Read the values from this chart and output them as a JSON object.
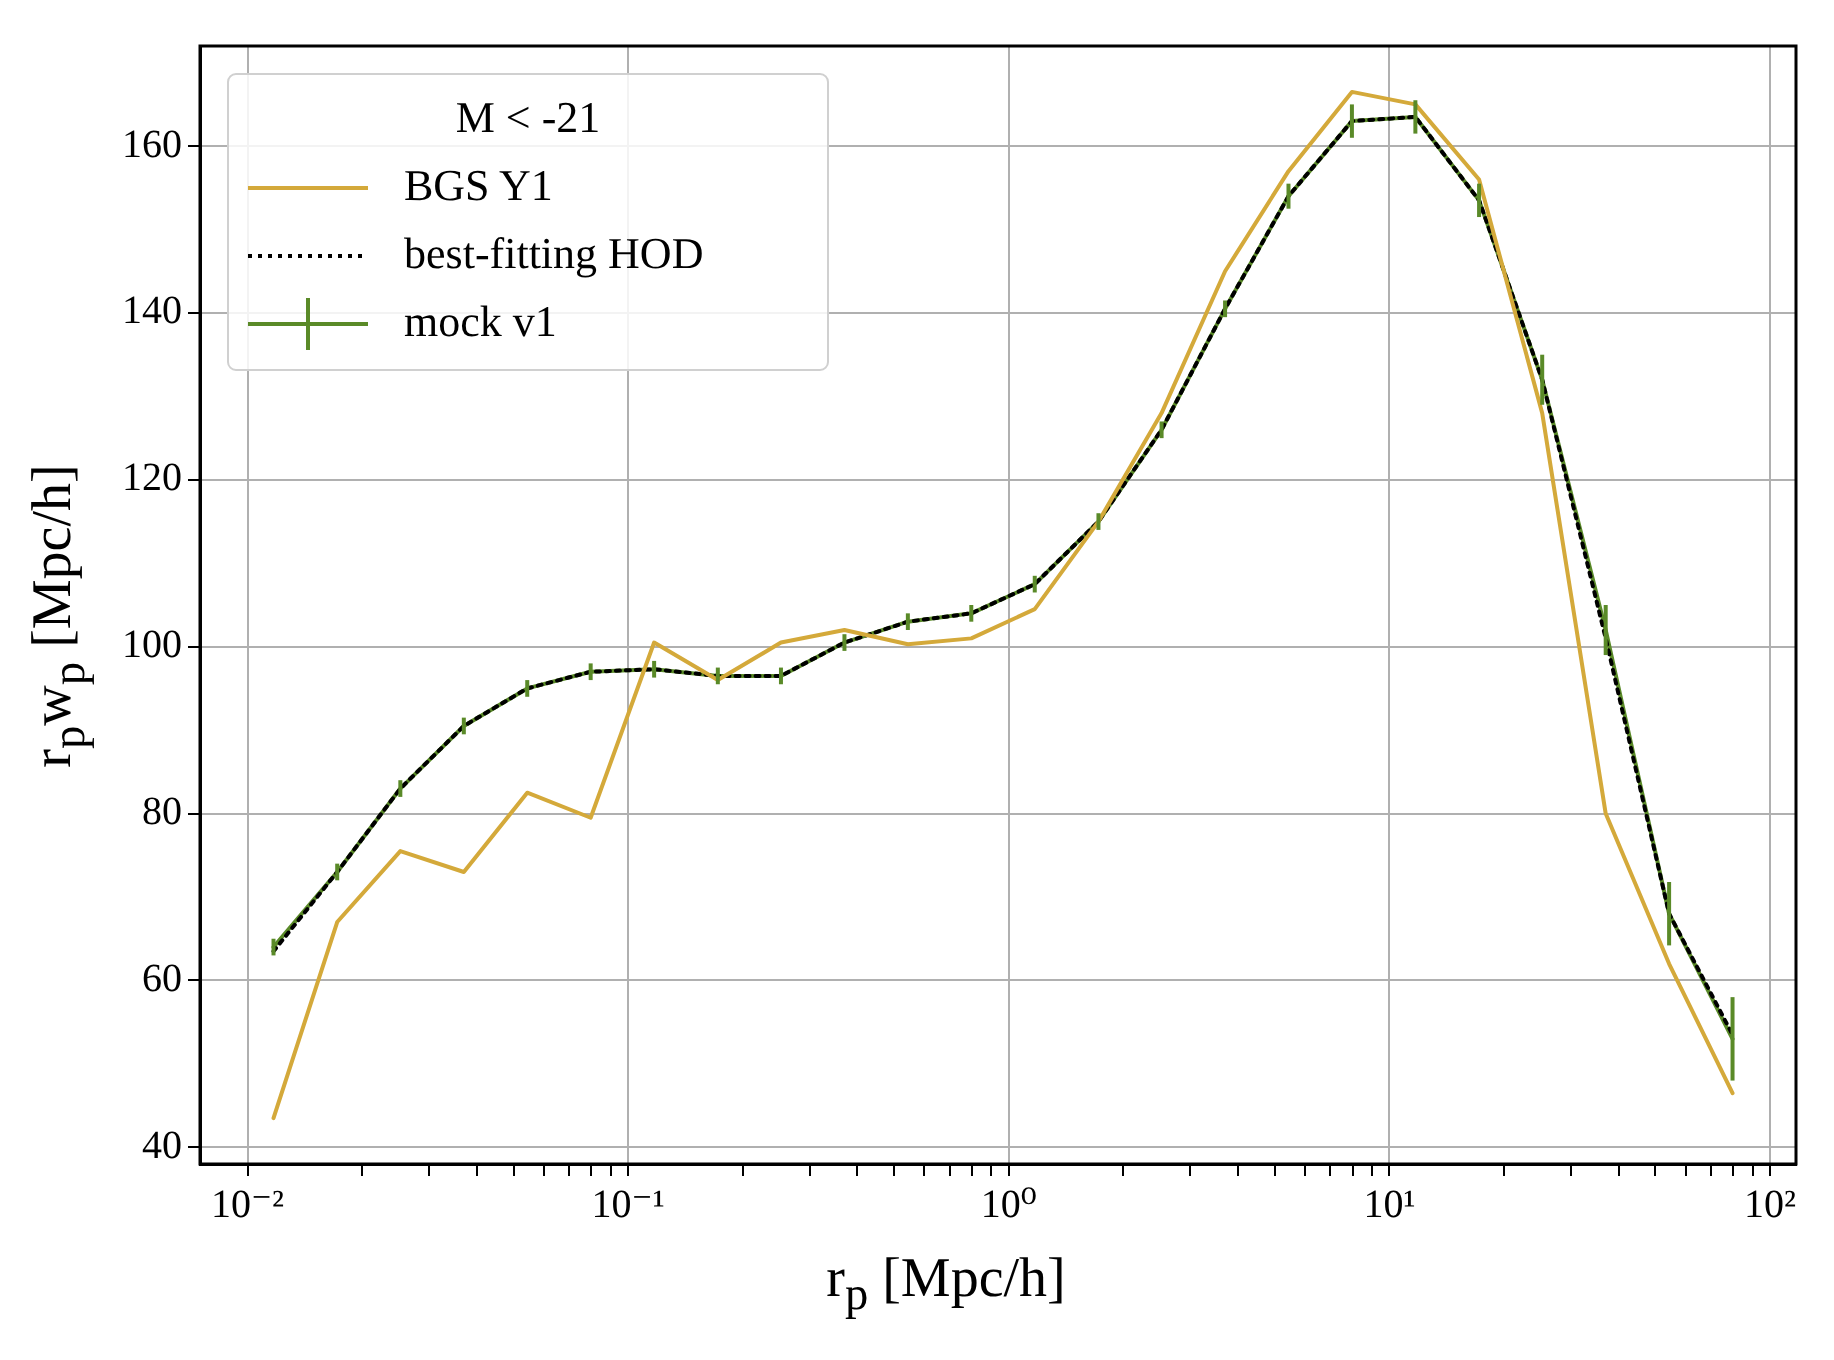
{
  "chart_data": {
    "type": "line",
    "xlabel": "r$_{p}$ [Mpc/h]",
    "ylabel": "r$_{p}$w$_{p}$ [Mpc/h]",
    "legend_title": "M < -21",
    "log": "x",
    "grid": true,
    "legend": "top left",
    "xlim": [
      0.0075,
      117
    ],
    "ylim": [
      38,
      172
    ],
    "xticks": [
      {
        "value": 0.01,
        "label": "10⁻²"
      },
      {
        "value": 0.02,
        "label": null
      },
      {
        "value": 0.03,
        "label": null
      },
      {
        "value": 0.04,
        "label": null
      },
      {
        "value": 0.05,
        "label": null
      },
      {
        "value": 0.06,
        "label": null
      },
      {
        "value": 0.07,
        "label": null
      },
      {
        "value": 0.08,
        "label": null
      },
      {
        "value": 0.09,
        "label": null
      },
      {
        "value": 0.1,
        "label": "10⁻¹"
      },
      {
        "value": 0.2,
        "label": null
      },
      {
        "value": 0.3,
        "label": null
      },
      {
        "value": 0.4,
        "label": null
      },
      {
        "value": 0.5,
        "label": null
      },
      {
        "value": 0.6,
        "label": null
      },
      {
        "value": 0.7,
        "label": null
      },
      {
        "value": 0.8,
        "label": null
      },
      {
        "value": 0.9,
        "label": null
      },
      {
        "value": 1,
        "label": "10⁰"
      },
      {
        "value": 2,
        "label": null
      },
      {
        "value": 3,
        "label": null
      },
      {
        "value": 4,
        "label": null
      },
      {
        "value": 5,
        "label": null
      },
      {
        "value": 6,
        "label": null
      },
      {
        "value": 7,
        "label": null
      },
      {
        "value": 8,
        "label": null
      },
      {
        "value": 9,
        "label": null
      },
      {
        "value": 10,
        "label": "10¹"
      },
      {
        "value": 20,
        "label": null
      },
      {
        "value": 30,
        "label": null
      },
      {
        "value": 40,
        "label": null
      },
      {
        "value": 50,
        "label": null
      },
      {
        "value": 60,
        "label": null
      },
      {
        "value": 70,
        "label": null
      },
      {
        "value": 80,
        "label": null
      },
      {
        "value": 90,
        "label": null
      },
      {
        "value": 100,
        "label": "10²"
      }
    ],
    "yticks": [
      40,
      60,
      80,
      100,
      120,
      140,
      160
    ],
    "x": [
      0.0117,
      0.0172,
      0.0252,
      0.037,
      0.0543,
      0.0797,
      0.117,
      0.172,
      0.252,
      0.37,
      0.543,
      0.797,
      1.17,
      1.72,
      2.52,
      3.7,
      5.43,
      7.97,
      11.7,
      17.2,
      25.2,
      37,
      54.3,
      79.7
    ],
    "series": [
      {
        "name": "BGS Y1",
        "color": "#d4a93a",
        "line_style": "solid",
        "marker": "none",
        "values": [
          43.5,
          67,
          75.5,
          73,
          82.5,
          79.5,
          100.5,
          96,
          100.5,
          102,
          100.3,
          101,
          104.5,
          115,
          128,
          145,
          157,
          166.5,
          165,
          156,
          128,
          80,
          62,
          46.5
        ]
      },
      {
        "name": "best-fitting HOD",
        "color": "#000000",
        "line_style": "dotted",
        "marker": "none",
        "values": [
          63.5,
          73,
          83,
          90.5,
          95,
          97,
          97.3,
          96.5,
          96.5,
          100.5,
          103,
          104,
          107.5,
          115,
          126,
          140.5,
          154,
          163,
          163.5,
          153.5,
          132,
          101,
          68,
          53.5
        ]
      },
      {
        "name": "mock v1",
        "color": "#5a8a28",
        "line_style": "solid",
        "values": [
          64,
          73,
          83,
          90.5,
          95,
          97,
          97.3,
          96.5,
          96.5,
          100.5,
          103,
          104,
          107.5,
          115,
          126,
          140.5,
          154,
          163,
          163.5,
          153.5,
          132,
          102,
          68,
          53
        ],
        "errors": [
          1,
          1,
          1,
          1,
          1,
          1,
          1,
          1,
          1,
          1,
          1,
          1,
          1,
          1,
          1,
          1,
          1.5,
          2,
          2,
          2,
          3,
          3,
          3.8,
          5
        ]
      }
    ]
  }
}
